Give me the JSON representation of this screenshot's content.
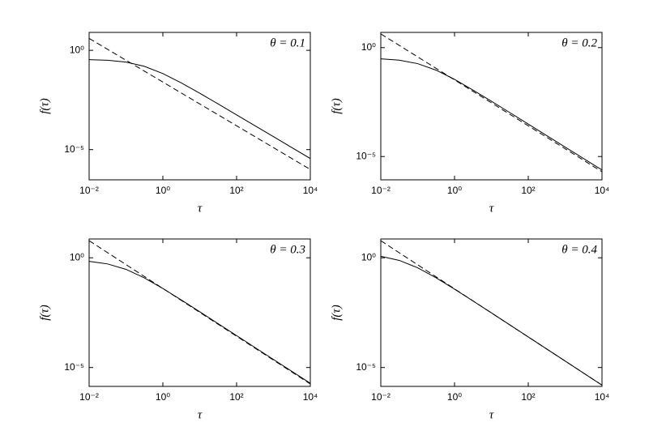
{
  "chart_data": [
    {
      "type": "line",
      "annotation": "θ = 0.1",
      "xlabel": "τ",
      "ylabel": "f(τ)",
      "xscale": "log",
      "yscale": "log",
      "xlim": [
        0.01,
        10000
      ],
      "ylim": [
        3e-07,
        8
      ],
      "xticks": [
        {
          "value": 0.01,
          "label": "10⁻²"
        },
        {
          "value": 1,
          "label": "10⁰"
        },
        {
          "value": 100,
          "label": "10²"
        },
        {
          "value": 10000,
          "label": "10⁴"
        }
      ],
      "yticks": [
        {
          "value": 1,
          "label": "10⁰"
        },
        {
          "value": 1e-05,
          "label": "10⁻⁵"
        }
      ],
      "series": [
        {
          "color": "#000000",
          "dashed": false,
          "x": [
            0.01,
            0.0316,
            0.1,
            0.316,
            1,
            3.16,
            10,
            31.6,
            100,
            1000,
            10000
          ],
          "values": [
            0.341,
            0.316,
            0.255,
            0.156,
            0.0676,
            0.0229,
            0.00692,
            0.002,
            0.000562,
            4.47e-05,
            3.55e-06
          ]
        },
        {
          "color": "#000000",
          "dashed": true,
          "x": [
            0.01,
            10000
          ],
          "values": [
            4.0,
            1e-06
          ]
        }
      ]
    },
    {
      "type": "line",
      "annotation": "θ = 0.2",
      "xlabel": "τ",
      "ylabel": "f(τ)",
      "xscale": "log",
      "yscale": "log",
      "xlim": [
        0.01,
        10000
      ],
      "ylim": [
        8.5e-07,
        5
      ],
      "xticks": [
        {
          "value": 0.01,
          "label": "10⁻²"
        },
        {
          "value": 1,
          "label": "10⁰"
        },
        {
          "value": 100,
          "label": "10²"
        },
        {
          "value": 10000,
          "label": "10⁴"
        }
      ],
      "yticks": [
        {
          "value": 1,
          "label": "10⁰"
        },
        {
          "value": 1e-05,
          "label": "10⁻⁵"
        }
      ],
      "series": [
        {
          "color": "#000000",
          "dashed": false,
          "x": [
            0.01,
            0.0316,
            0.1,
            0.316,
            1,
            3.16,
            10,
            31.6,
            100,
            1000,
            10000
          ],
          "values": [
            0.307,
            0.265,
            0.184,
            0.0923,
            0.0348,
            0.0113,
            0.00346,
            0.00104,
            0.000308,
            2.72e-05,
            2.4e-06
          ]
        },
        {
          "color": "#000000",
          "dashed": true,
          "x": [
            0.01,
            10000
          ],
          "values": [
            4.27,
            2e-06
          ]
        }
      ]
    },
    {
      "type": "line",
      "annotation": "θ = 0.3",
      "xlabel": "τ",
      "ylabel": "f(τ)",
      "xscale": "log",
      "yscale": "log",
      "xlim": [
        0.01,
        10000
      ],
      "ylim": [
        1.38e-06,
        7.2
      ],
      "xticks": [
        {
          "value": 0.01,
          "label": "10⁻²"
        },
        {
          "value": 1,
          "label": "10⁰"
        },
        {
          "value": 100,
          "label": "10²"
        },
        {
          "value": 10000,
          "label": "10⁴"
        }
      ],
      "yticks": [
        {
          "value": 1,
          "label": "10⁰"
        },
        {
          "value": 1e-05,
          "label": "10⁻⁵"
        }
      ],
      "series": [
        {
          "color": "#000000",
          "dashed": false,
          "x": [
            0.01,
            0.0316,
            0.1,
            0.316,
            1,
            3.16,
            10,
            31.6,
            100,
            1000,
            10000
          ],
          "values": [
            0.686,
            0.525,
            0.298,
            0.121,
            0.0399,
            0.012,
            0.00348,
            0.000998,
            0.000286,
            2.33e-05,
            1.91e-06
          ]
        },
        {
          "color": "#000000",
          "dashed": true,
          "x": [
            0.01,
            10000
          ],
          "values": [
            6.0,
            1.78e-06
          ]
        }
      ]
    },
    {
      "type": "line",
      "annotation": "θ = 0.4",
      "xlabel": "τ",
      "ylabel": "f(τ)",
      "xscale": "log",
      "yscale": "log",
      "xlim": [
        0.01,
        10000
      ],
      "ylim": [
        1.38e-06,
        7.2
      ],
      "xticks": [
        {
          "value": 0.01,
          "label": "10⁻²"
        },
        {
          "value": 1,
          "label": "10⁰"
        },
        {
          "value": 100,
          "label": "10²"
        },
        {
          "value": 10000,
          "label": "10⁴"
        }
      ],
      "yticks": [
        {
          "value": 1,
          "label": "10⁰"
        },
        {
          "value": 1e-05,
          "label": "10⁻⁵"
        }
      ],
      "series": [
        {
          "color": "#000000",
          "dashed": false,
          "x": [
            0.01,
            0.0316,
            0.1,
            0.316,
            1,
            3.16,
            10,
            31.6,
            100,
            1000,
            10000
          ],
          "values": [
            1.17,
            0.76,
            0.35,
            0.122,
            0.0373,
            0.0108,
            0.00309,
            0.000877,
            0.000248,
            1.98e-05,
            1.58e-06
          ]
        },
        {
          "color": "#000000",
          "dashed": true,
          "x": [
            0.01,
            10000
          ],
          "values": [
            6.0,
            1.58e-06
          ]
        }
      ]
    }
  ]
}
